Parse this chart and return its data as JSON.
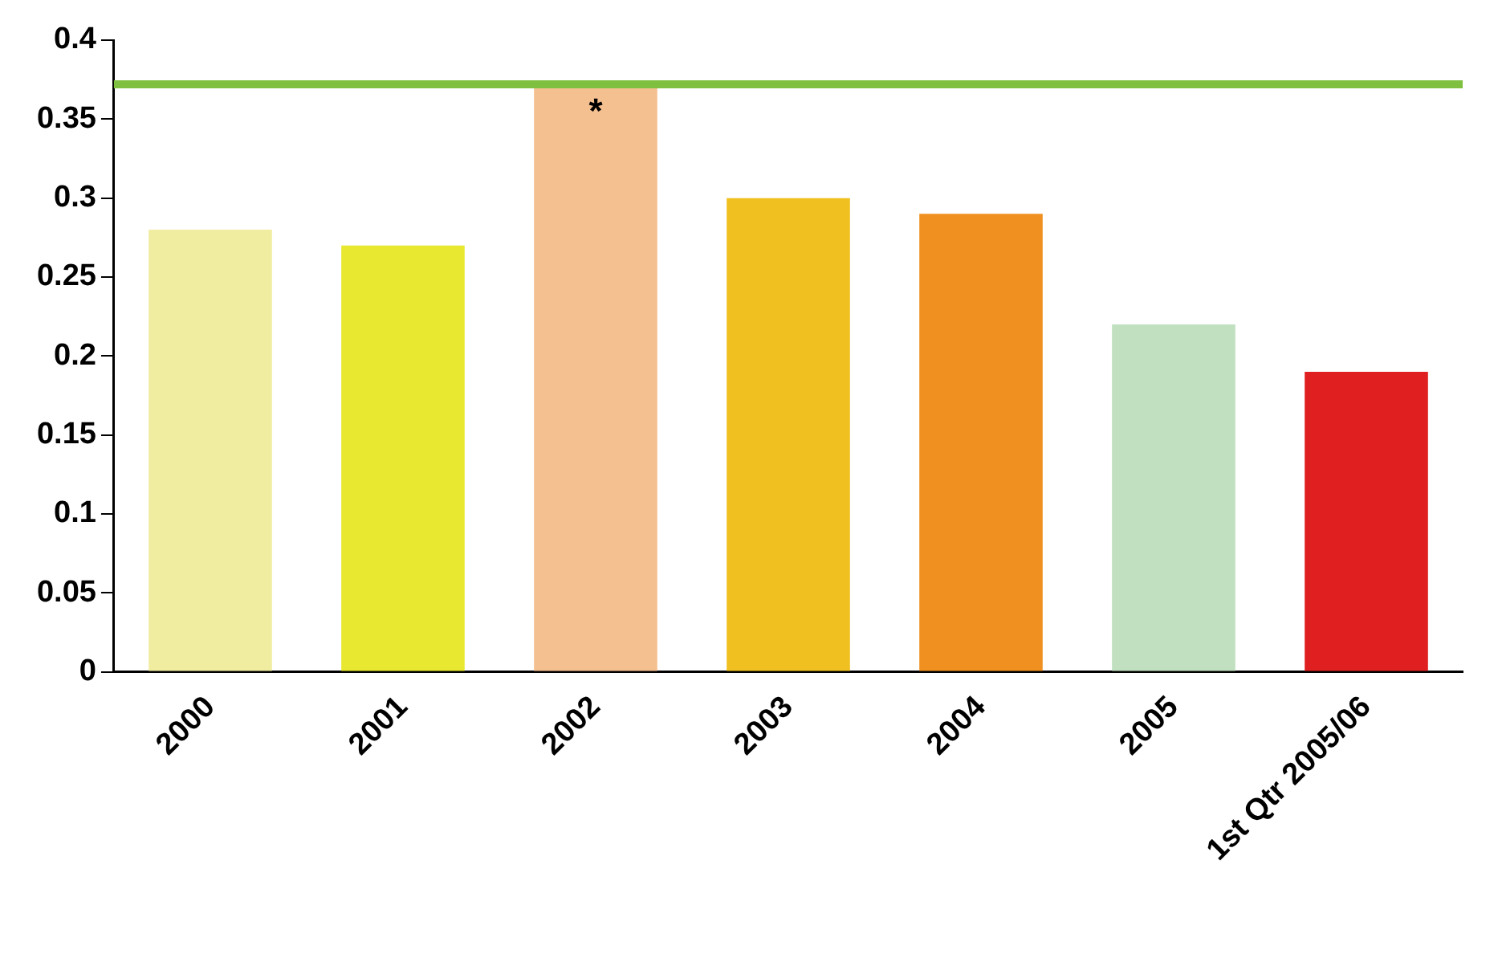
{
  "chart_data": {
    "type": "bar",
    "categories": [
      "2000",
      "2001",
      "2002",
      "2003",
      "2004",
      "2005",
      "1st Qtr 2005/06"
    ],
    "values": [
      0.28,
      0.27,
      0.37,
      0.3,
      0.29,
      0.22,
      0.19
    ],
    "colors": [
      "#f0eca0",
      "#e8e830",
      "#f5c090",
      "#f0c020",
      "#f09020",
      "#c0e0c0",
      "#e02020"
    ],
    "ylim": [
      0,
      0.4
    ],
    "yticks": [
      0,
      0.05,
      0.1,
      0.15,
      0.2,
      0.25,
      0.3,
      0.35,
      0.4
    ],
    "grid": false,
    "legend": false,
    "ref_lines": [
      {
        "axis": "y",
        "value": 0.372,
        "color": "#80c040"
      }
    ],
    "annotations": [
      {
        "text": "*",
        "x": "2002",
        "y": 0.37
      }
    ]
  }
}
